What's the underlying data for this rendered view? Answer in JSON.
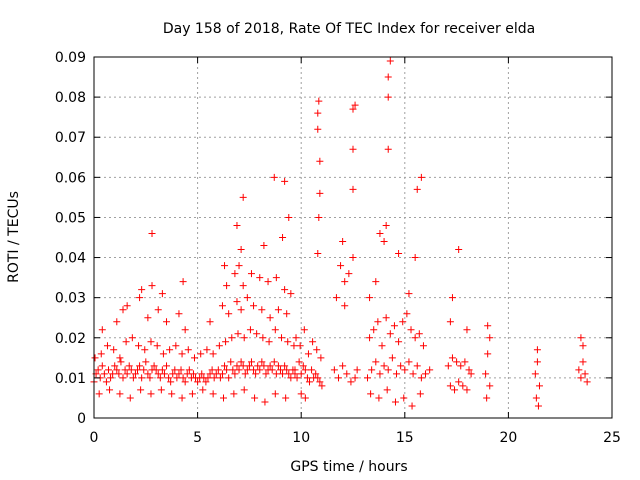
{
  "chart_data": {
    "type": "scatter",
    "title": "Day 158 of 2018, Rate Of TEC Index for receiver elda",
    "xlabel": "GPS time / hours",
    "ylabel": "ROTI / TECUs",
    "xlim": [
      0,
      25
    ],
    "ylim": [
      0,
      0.09
    ],
    "x_ticks": [
      0,
      5,
      10,
      15,
      20,
      25
    ],
    "x_tick_labels": [
      "0",
      "5",
      "10",
      "15",
      "20",
      "25"
    ],
    "y_ticks": [
      0,
      0.01,
      0.02,
      0.03,
      0.04,
      0.05,
      0.06,
      0.07,
      0.08,
      0.09
    ],
    "y_tick_labels": [
      "0",
      "0.01",
      "0.02",
      "0.03",
      "0.04",
      "0.05",
      "0.06",
      "0.07",
      "0.08",
      "0.09"
    ],
    "grid": true,
    "marker": "+",
    "color": "#ff0000",
    "x": [
      0.0,
      0.1,
      0.2,
      0.3,
      0.4,
      0.5,
      0.6,
      0.7,
      0.8,
      0.9,
      1.0,
      1.1,
      1.2,
      1.3,
      1.4,
      1.5,
      1.6,
      1.7,
      1.8,
      1.9,
      2.0,
      2.1,
      2.2,
      2.3,
      2.4,
      2.5,
      2.6,
      2.7,
      2.8,
      2.9,
      3.0,
      3.1,
      3.2,
      3.3,
      3.4,
      3.5,
      3.6,
      3.7,
      3.8,
      3.9,
      4.0,
      4.1,
      4.2,
      4.3,
      4.4,
      4.5,
      4.6,
      4.7,
      4.8,
      4.9,
      5.0,
      5.1,
      5.2,
      5.3,
      5.4,
      5.5,
      5.6,
      5.7,
      5.8,
      5.9,
      6.0,
      6.1,
      6.2,
      6.3,
      6.4,
      6.5,
      6.6,
      6.7,
      6.8,
      6.9,
      7.0,
      7.1,
      7.2,
      7.3,
      7.4,
      7.5,
      7.6,
      7.7,
      7.8,
      7.9,
      8.0,
      8.1,
      8.2,
      8.3,
      8.4,
      8.5,
      8.6,
      8.7,
      8.8,
      8.9,
      9.0,
      9.1,
      9.2,
      9.3,
      9.4,
      9.5,
      9.6,
      9.7,
      0.05,
      0.35,
      0.65,
      0.95,
      1.25,
      1.55,
      1.85,
      2.15,
      2.45,
      2.75,
      3.05,
      3.35,
      3.65,
      3.95,
      4.25,
      4.55,
      4.85,
      5.15,
      5.45,
      5.75,
      6.05,
      6.35,
      6.65,
      6.95,
      7.25,
      7.55,
      7.85,
      8.15,
      8.45,
      8.75,
      9.05,
      9.35,
      9.65,
      0.25,
      0.75,
      1.25,
      1.75,
      2.25,
      2.75,
      3.25,
      3.75,
      4.25,
      4.75,
      5.25,
      5.75,
      6.25,
      6.75,
      7.25,
      7.75,
      8.25,
      8.75,
      9.25,
      0.4,
      1.1,
      1.6,
      2.2,
      2.6,
      3.1,
      3.5,
      4.1,
      4.4,
      5.6,
      6.2,
      6.5,
      6.9,
      7.1,
      7.4,
      7.7,
      8.1,
      8.5,
      8.9,
      9.3,
      1.4,
      2.3,
      2.8,
      3.3,
      4.3,
      6.4,
      6.8,
      7.0,
      7.2,
      7.6,
      8.0,
      8.4,
      8.8,
      9.2,
      9.5,
      2.8,
      6.3,
      6.9,
      7.1,
      7.2,
      8.2,
      8.7,
      9.1,
      9.2,
      9.4,
      9.7,
      9.8,
      9.9,
      10.0,
      10.1,
      10.2,
      10.3,
      10.4,
      10.5,
      10.6,
      10.7,
      10.8,
      10.9,
      11.0,
      9.75,
      9.95,
      10.15,
      10.35,
      10.55,
      10.75,
      10.95,
      10.0,
      10.2,
      10.8,
      10.85,
      10.9,
      10.9,
      10.8,
      10.8,
      10.85,
      11.6,
      11.8,
      12.0,
      12.2,
      12.4,
      12.6,
      12.7,
      11.7,
      11.9,
      12.1,
      12.3,
      12.5,
      12.0,
      12.1,
      12.5,
      12.5,
      12.5,
      12.6,
      13.2,
      13.4,
      13.6,
      13.8,
      14.0,
      14.2,
      14.4,
      14.6,
      14.8,
      15.0,
      15.2,
      15.4,
      15.6,
      15.8,
      16.0,
      13.3,
      13.5,
      13.7,
      13.9,
      14.1,
      14.3,
      14.5,
      14.7,
      14.9,
      15.1,
      15.3,
      15.5,
      15.7,
      15.9,
      13.35,
      13.75,
      14.15,
      14.55,
      14.95,
      15.35,
      15.75,
      13.3,
      13.6,
      13.8,
      14.0,
      14.1,
      14.2,
      14.2,
      14.2,
      14.3,
      14.7,
      15.2,
      15.5,
      15.6,
      15.8,
      16.2,
      17.1,
      17.3,
      17.5,
      17.7,
      17.9,
      18.1,
      18.2,
      17.2,
      17.4,
      17.6,
      17.8,
      18.0,
      17.2,
      17.3,
      17.6,
      18.0,
      18.9,
      19.0,
      19.1,
      19.0,
      19.1,
      18.95,
      21.3,
      21.4,
      21.5,
      21.4,
      21.35,
      21.45,
      23.4,
      23.5,
      23.6,
      23.7,
      23.8,
      23.6,
      23.5
    ],
    "y": [
      0.009,
      0.011,
      0.012,
      0.01,
      0.013,
      0.011,
      0.009,
      0.012,
      0.01,
      0.011,
      0.013,
      0.012,
      0.011,
      0.014,
      0.01,
      0.012,
      0.011,
      0.013,
      0.012,
      0.01,
      0.011,
      0.012,
      0.013,
      0.01,
      0.012,
      0.014,
      0.011,
      0.01,
      0.012,
      0.013,
      0.012,
      0.011,
      0.01,
      0.012,
      0.011,
      0.013,
      0.01,
      0.009,
      0.011,
      0.012,
      0.01,
      0.011,
      0.012,
      0.01,
      0.009,
      0.011,
      0.012,
      0.01,
      0.011,
      0.01,
      0.009,
      0.01,
      0.011,
      0.01,
      0.009,
      0.01,
      0.011,
      0.012,
      0.01,
      0.011,
      0.012,
      0.01,
      0.011,
      0.013,
      0.012,
      0.01,
      0.014,
      0.012,
      0.011,
      0.013,
      0.012,
      0.014,
      0.013,
      0.011,
      0.012,
      0.013,
      0.014,
      0.012,
      0.011,
      0.013,
      0.012,
      0.014,
      0.013,
      0.011,
      0.012,
      0.013,
      0.012,
      0.014,
      0.011,
      0.013,
      0.012,
      0.011,
      0.013,
      0.012,
      0.011,
      0.01,
      0.012,
      0.011,
      0.015,
      0.016,
      0.018,
      0.017,
      0.015,
      0.019,
      0.02,
      0.018,
      0.017,
      0.019,
      0.018,
      0.016,
      0.017,
      0.018,
      0.016,
      0.017,
      0.015,
      0.016,
      0.017,
      0.016,
      0.018,
      0.019,
      0.02,
      0.021,
      0.02,
      0.022,
      0.021,
      0.02,
      0.019,
      0.022,
      0.02,
      0.019,
      0.018,
      0.006,
      0.007,
      0.006,
      0.005,
      0.007,
      0.006,
      0.007,
      0.006,
      0.005,
      0.006,
      0.007,
      0.006,
      0.005,
      0.006,
      0.007,
      0.005,
      0.004,
      0.006,
      0.005,
      0.022,
      0.024,
      0.028,
      0.03,
      0.025,
      0.027,
      0.024,
      0.026,
      0.022,
      0.024,
      0.028,
      0.026,
      0.029,
      0.027,
      0.03,
      0.028,
      0.027,
      0.025,
      0.027,
      0.026,
      0.027,
      0.032,
      0.033,
      0.031,
      0.034,
      0.033,
      0.036,
      0.038,
      0.033,
      0.036,
      0.035,
      0.034,
      0.035,
      0.032,
      0.031,
      0.046,
      0.038,
      0.048,
      0.042,
      0.055,
      0.043,
      0.06,
      0.045,
      0.059,
      0.05,
      0.012,
      0.01,
      0.014,
      0.011,
      0.013,
      0.012,
      0.01,
      0.009,
      0.012,
      0.01,
      0.011,
      0.01,
      0.009,
      0.008,
      0.02,
      0.018,
      0.022,
      0.016,
      0.019,
      0.017,
      0.015,
      0.006,
      0.005,
      0.041,
      0.05,
      0.056,
      0.064,
      0.072,
      0.076,
      0.079,
      0.012,
      0.01,
      0.013,
      0.011,
      0.009,
      0.01,
      0.012,
      0.03,
      0.038,
      0.034,
      0.036,
      0.04,
      0.044,
      0.028,
      0.057,
      0.067,
      0.077,
      0.078,
      0.01,
      0.012,
      0.014,
      0.011,
      0.013,
      0.012,
      0.015,
      0.011,
      0.013,
      0.012,
      0.014,
      0.011,
      0.013,
      0.01,
      0.011,
      0.02,
      0.022,
      0.024,
      0.018,
      0.025,
      0.021,
      0.023,
      0.019,
      0.024,
      0.026,
      0.022,
      0.02,
      0.021,
      0.018,
      0.006,
      0.005,
      0.007,
      0.004,
      0.005,
      0.003,
      0.006,
      0.03,
      0.034,
      0.046,
      0.044,
      0.048,
      0.067,
      0.08,
      0.085,
      0.089,
      0.041,
      0.031,
      0.04,
      0.057,
      0.06,
      0.012,
      0.013,
      0.015,
      0.014,
      0.013,
      0.014,
      0.012,
      0.011,
      0.008,
      0.007,
      0.009,
      0.008,
      0.007,
      0.024,
      0.03,
      0.042,
      0.022,
      0.011,
      0.016,
      0.02,
      0.023,
      0.008,
      0.005,
      0.011,
      0.014,
      0.008,
      0.017,
      0.005,
      0.003,
      0.012,
      0.01,
      0.014,
      0.011,
      0.009,
      0.018,
      0.02
    ]
  }
}
